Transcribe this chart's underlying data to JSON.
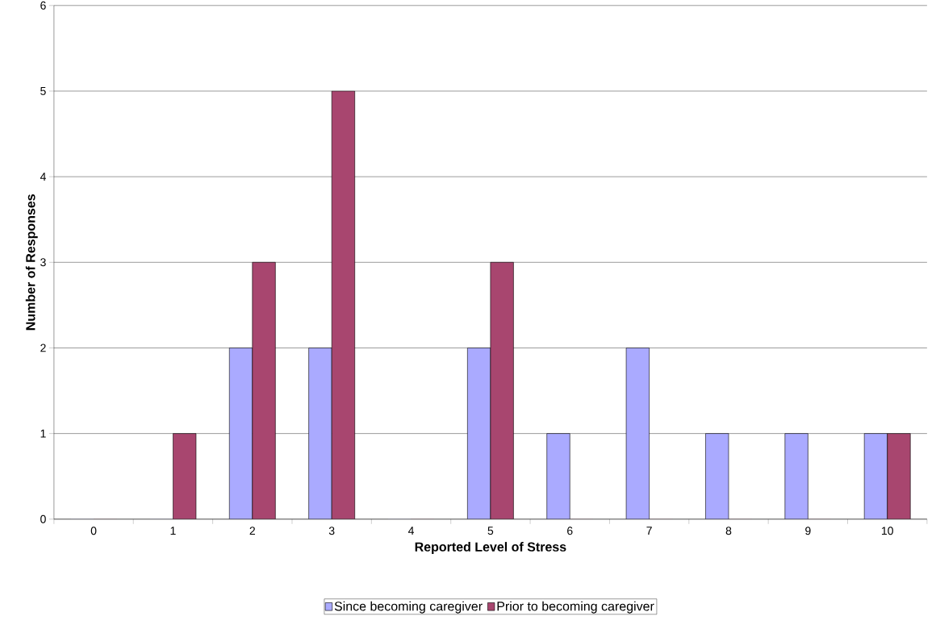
{
  "chart_data": {
    "type": "bar",
    "xlabel": "Reported Level of Stress",
    "ylabel": "Number of Responses",
    "categories": [
      "0",
      "1",
      "2",
      "3",
      "4",
      "5",
      "6",
      "7",
      "8",
      "9",
      "10"
    ],
    "series": [
      {
        "name": "Since becoming caregiver",
        "color": "#aaaaff",
        "values": [
          0,
          0,
          2,
          2,
          0,
          2,
          1,
          2,
          1,
          1,
          1
        ]
      },
      {
        "name": "Prior to becoming caregiver",
        "color": "#a8466f",
        "values": [
          0,
          1,
          3,
          5,
          0,
          3,
          0,
          0,
          0,
          0,
          1
        ]
      }
    ],
    "ylim": [
      0,
      6
    ],
    "yticks": [
      0,
      1,
      2,
      3,
      4,
      5,
      6
    ],
    "grid": "y",
    "legend": "bottom"
  }
}
